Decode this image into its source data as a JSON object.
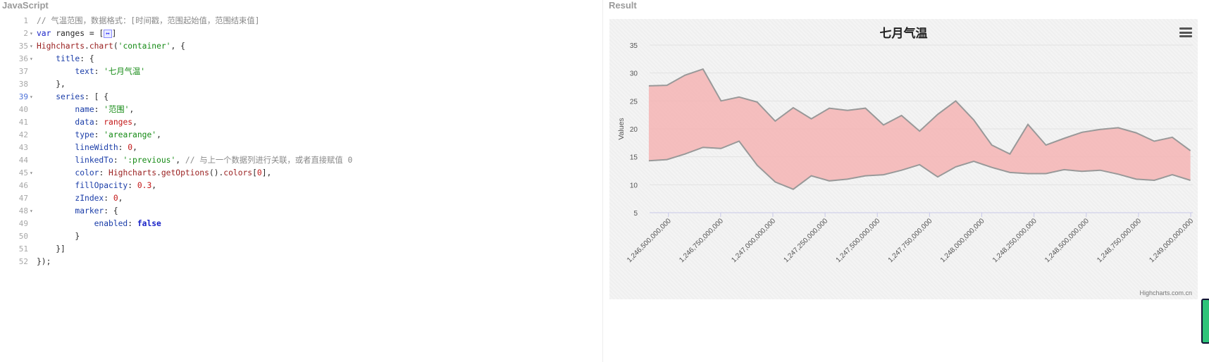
{
  "labels": {
    "javascript": "JavaScript",
    "result": "Result"
  },
  "code_lines": [
    {
      "n": "1",
      "tokens": [
        {
          "t": "// 气温范围，数据格式：[时间戳，范围起始值，范围结束值]",
          "c": "c"
        }
      ]
    },
    {
      "n": "2",
      "fold": true,
      "tokens": [
        {
          "t": "var",
          "c": "k"
        },
        {
          "t": " ranges = [",
          "c": "p"
        },
        {
          "t": "↔",
          "c": "ellipsis"
        },
        {
          "t": "]",
          "c": "p"
        }
      ]
    },
    {
      "n": "35",
      "fold": true,
      "tokens": [
        {
          "t": "Highcharts",
          "c": "f"
        },
        {
          "t": ".",
          "c": "p"
        },
        {
          "t": "chart",
          "c": "f"
        },
        {
          "t": "(",
          "c": "p"
        },
        {
          "t": "'container'",
          "c": "s"
        },
        {
          "t": ", {",
          "c": "p"
        }
      ]
    },
    {
      "n": "36",
      "fold": true,
      "tokens": [
        {
          "t": "    ",
          "c": "p"
        },
        {
          "t": "title",
          "c": "pr"
        },
        {
          "t": ": {",
          "c": "p"
        }
      ]
    },
    {
      "n": "37",
      "tokens": [
        {
          "t": "        ",
          "c": "p"
        },
        {
          "t": "text",
          "c": "pr"
        },
        {
          "t": ": ",
          "c": "p"
        },
        {
          "t": "'七月气温'",
          "c": "s"
        }
      ]
    },
    {
      "n": "38",
      "tokens": [
        {
          "t": "    },",
          "c": "p"
        }
      ]
    },
    {
      "n": "39",
      "fold": true,
      "active": true,
      "tokens": [
        {
          "t": "    ",
          "c": "p"
        },
        {
          "t": "series",
          "c": "pr"
        },
        {
          "t": ": [ {",
          "c": "p"
        }
      ]
    },
    {
      "n": "40",
      "tokens": [
        {
          "t": "        ",
          "c": "p"
        },
        {
          "t": "name",
          "c": "pr"
        },
        {
          "t": ": ",
          "c": "p"
        },
        {
          "t": "'范围'",
          "c": "s"
        },
        {
          "t": ",",
          "c": "p"
        }
      ]
    },
    {
      "n": "41",
      "tokens": [
        {
          "t": "        ",
          "c": "p"
        },
        {
          "t": "data",
          "c": "pr"
        },
        {
          "t": ": ",
          "c": "p"
        },
        {
          "t": "ranges",
          "c": "n"
        },
        {
          "t": ",",
          "c": "p"
        }
      ]
    },
    {
      "n": "42",
      "tokens": [
        {
          "t": "        ",
          "c": "p"
        },
        {
          "t": "type",
          "c": "pr"
        },
        {
          "t": ": ",
          "c": "p"
        },
        {
          "t": "'arearange'",
          "c": "s"
        },
        {
          "t": ",",
          "c": "p"
        }
      ]
    },
    {
      "n": "43",
      "tokens": [
        {
          "t": "        ",
          "c": "p"
        },
        {
          "t": "lineWidth",
          "c": "pr"
        },
        {
          "t": ": ",
          "c": "p"
        },
        {
          "t": "0",
          "c": "n"
        },
        {
          "t": ",",
          "c": "p"
        }
      ]
    },
    {
      "n": "44",
      "tokens": [
        {
          "t": "        ",
          "c": "p"
        },
        {
          "t": "linkedTo",
          "c": "pr"
        },
        {
          "t": ": ",
          "c": "p"
        },
        {
          "t": "':previous'",
          "c": "s"
        },
        {
          "t": ", ",
          "c": "p"
        },
        {
          "t": "// 与上一个数据列进行关联，或者直接赋值 0",
          "c": "c"
        }
      ]
    },
    {
      "n": "45",
      "fold": true,
      "tokens": [
        {
          "t": "        ",
          "c": "p"
        },
        {
          "t": "color",
          "c": "pr"
        },
        {
          "t": ": ",
          "c": "p"
        },
        {
          "t": "Highcharts",
          "c": "f"
        },
        {
          "t": ".",
          "c": "p"
        },
        {
          "t": "getOptions",
          "c": "f"
        },
        {
          "t": "().",
          "c": "p"
        },
        {
          "t": "colors",
          "c": "f"
        },
        {
          "t": "[",
          "c": "p"
        },
        {
          "t": "0",
          "c": "n"
        },
        {
          "t": "],",
          "c": "p"
        }
      ]
    },
    {
      "n": "46",
      "tokens": [
        {
          "t": "        ",
          "c": "p"
        },
        {
          "t": "fillOpacity",
          "c": "pr"
        },
        {
          "t": ": ",
          "c": "p"
        },
        {
          "t": "0.3",
          "c": "n"
        },
        {
          "t": ",",
          "c": "p"
        }
      ]
    },
    {
      "n": "47",
      "tokens": [
        {
          "t": "        ",
          "c": "p"
        },
        {
          "t": "zIndex",
          "c": "pr"
        },
        {
          "t": ": ",
          "c": "p"
        },
        {
          "t": "0",
          "c": "n"
        },
        {
          "t": ",",
          "c": "p"
        }
      ]
    },
    {
      "n": "48",
      "fold": true,
      "tokens": [
        {
          "t": "        ",
          "c": "p"
        },
        {
          "t": "marker",
          "c": "pr"
        },
        {
          "t": ": {",
          "c": "p"
        }
      ]
    },
    {
      "n": "49",
      "tokens": [
        {
          "t": "            ",
          "c": "p"
        },
        {
          "t": "enabled",
          "c": "pr"
        },
        {
          "t": ": ",
          "c": "p"
        },
        {
          "t": "false",
          "c": "b"
        }
      ]
    },
    {
      "n": "50",
      "tokens": [
        {
          "t": "        }",
          "c": "p"
        }
      ]
    },
    {
      "n": "51",
      "tokens": [
        {
          "t": "    }]",
          "c": "p"
        }
      ]
    },
    {
      "n": "52",
      "tokens": [
        {
          "t": "});",
          "c": "p"
        }
      ]
    }
  ],
  "chart": {
    "title": "七月气温",
    "ylabel": "Values",
    "credits": "Highcharts.com.cn",
    "menu_icon": "hamburger-menu-icon",
    "fill_color": "#f4b4b4",
    "line_color": "#999999"
  },
  "chart_data": {
    "type": "area",
    "subtype": "arearange",
    "title": "七月气温",
    "ylabel": "Values",
    "xlabel": "",
    "ylim": [
      5,
      35
    ],
    "yticks": [
      5,
      10,
      15,
      20,
      25,
      30,
      35
    ],
    "xlim": [
      1246410000000,
      1249010000000
    ],
    "xticks": [
      {
        "v": 1246500000000,
        "label": "1,246,500,000,000"
      },
      {
        "v": 1246750000000,
        "label": "1,246,750,000,000"
      },
      {
        "v": 1247000000000,
        "label": "1,247,000,000,000"
      },
      {
        "v": 1247250000000,
        "label": "1,247,250,000,000"
      },
      {
        "v": 1247500000000,
        "label": "1,247,500,000,000"
      },
      {
        "v": 1247750000000,
        "label": "1,247,750,000,000"
      },
      {
        "v": 1248000000000,
        "label": "1,248,000,000,000"
      },
      {
        "v": 1248250000000,
        "label": "1,248,250,000,000"
      },
      {
        "v": 1248500000000,
        "label": "1,248,500,000,000"
      },
      {
        "v": 1248750000000,
        "label": "1,248,750,000,000"
      },
      {
        "v": 1249000000000,
        "label": "1,249,000,000,000"
      }
    ],
    "grid": true,
    "series": [
      {
        "x": [
          1246406400000,
          1246492800000,
          1246579200000,
          1246665600000,
          1246752000000,
          1246838400000,
          1246924800000,
          1247011200000,
          1247097600000,
          1247184000000,
          1247270400000,
          1247356800000,
          1247443200000,
          1247529600000,
          1247616000000,
          1247702400000,
          1247788800000,
          1247875200000,
          1247961600000,
          1248048000000,
          1248134400000,
          1248220800000,
          1248307200000,
          1248393600000,
          1248480000000,
          1248566400000,
          1248652800000,
          1248739200000,
          1248825600000,
          1248912000000,
          1248998400000
        ],
        "low": [
          14.3,
          14.5,
          15.5,
          16.7,
          16.5,
          17.8,
          13.5,
          10.5,
          9.2,
          11.6,
          10.7,
          11.0,
          11.6,
          11.8,
          12.6,
          13.6,
          11.4,
          13.2,
          14.2,
          13.1,
          12.2,
          12.0,
          12.0,
          12.7,
          12.4,
          12.6,
          11.9,
          11.0,
          10.8,
          11.8,
          10.8
        ],
        "high": [
          27.7,
          27.8,
          29.6,
          30.7,
          25.0,
          25.7,
          24.8,
          21.4,
          23.8,
          21.8,
          23.7,
          23.3,
          23.7,
          20.7,
          22.4,
          19.6,
          22.6,
          25.0,
          21.6,
          17.1,
          15.5,
          20.8,
          17.1,
          18.3,
          19.4,
          19.9,
          20.2,
          19.3,
          17.8,
          18.5,
          16.1
        ]
      }
    ]
  }
}
